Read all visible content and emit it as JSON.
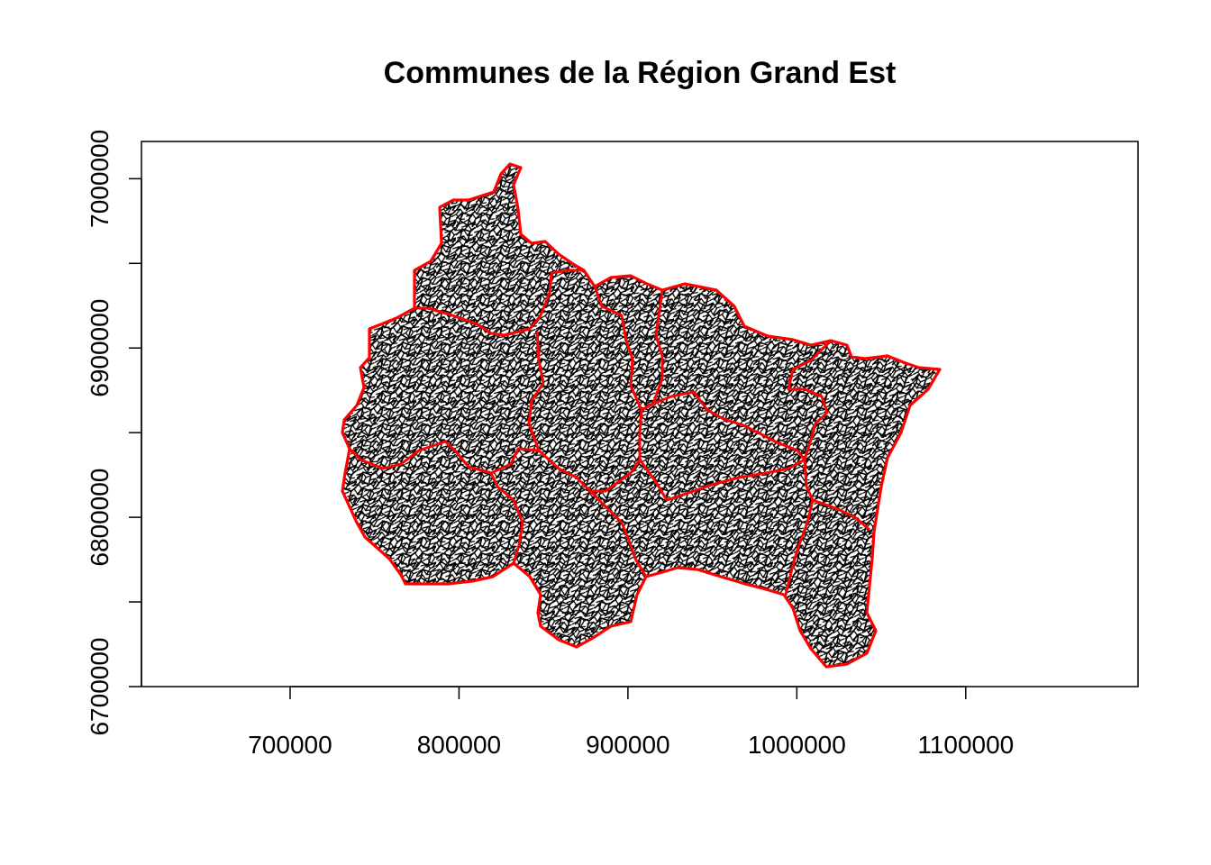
{
  "title": "Communes de la Région Grand Est",
  "x_axis": {
    "ticks": [
      700000,
      800000,
      900000,
      1000000,
      1100000
    ],
    "tick_labels": [
      "700000",
      "800000",
      "900000",
      "1000000",
      "1100000"
    ],
    "range": [
      612000,
      1202000
    ]
  },
  "y_axis": {
    "ticks": [
      6700000,
      6750000,
      6800000,
      6850000,
      6900000,
      6950000,
      7000000
    ],
    "labeled_ticks": [
      6700000,
      6800000,
      6900000,
      7000000
    ],
    "tick_labels": [
      "6700000",
      "6800000",
      "6900000",
      "7000000"
    ],
    "range": [
      6700000,
      7022000
    ]
  },
  "colors": {
    "commune_borders": "#000000",
    "department_borders": "#ff0000",
    "background": "#ffffff",
    "axis": "#000000"
  },
  "map": {
    "layers": [
      "commune boundaries (black)",
      "department boundaries (red)"
    ]
  }
}
